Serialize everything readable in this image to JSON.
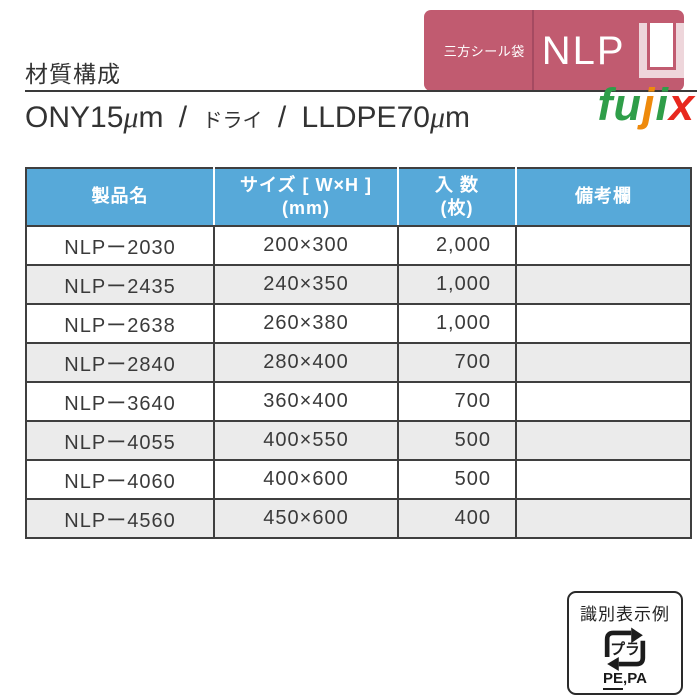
{
  "banner": {
    "category": "三方シール袋",
    "code": "NLP"
  },
  "logo": {
    "green1": "fu",
    "orange": "j",
    "green2": "i",
    "red": "x"
  },
  "heading": {
    "title": "材質構成"
  },
  "material": {
    "ony": "ONY15",
    "ony_unit": "μm",
    "slash1": "/",
    "dry": "ドライ",
    "slash2": "/",
    "lldpe": "LLDPE70",
    "lldpe_unit": "μm"
  },
  "table": {
    "headers": {
      "product": "製品名",
      "size_main": "サイズ [ W×H ]",
      "size_sub": "(mm)",
      "qty_main": "入 数",
      "qty_sub": "(枚)",
      "remarks": "備考欄"
    },
    "rows": [
      {
        "product": "NLPー2030",
        "size": "200×300",
        "qty": "2,000",
        "remarks": ""
      },
      {
        "product": "NLPー2435",
        "size": "240×350",
        "qty": "1,000",
        "remarks": ""
      },
      {
        "product": "NLPー2638",
        "size": "260×380",
        "qty": "1,000",
        "remarks": ""
      },
      {
        "product": "NLPー2840",
        "size": "280×400",
        "qty": "700",
        "remarks": ""
      },
      {
        "product": "NLPー3640",
        "size": "360×400",
        "qty": "700",
        "remarks": ""
      },
      {
        "product": "NLPー4055",
        "size": "400×550",
        "qty": "500",
        "remarks": ""
      },
      {
        "product": "NLPー4060",
        "size": "400×600",
        "qty": "500",
        "remarks": ""
      },
      {
        "product": "NLPー4560",
        "size": "450×600",
        "qty": "400",
        "remarks": ""
      }
    ]
  },
  "id_mark": {
    "title": "識別表示例",
    "icon_text": "プラ",
    "material_main": "PE",
    "material_rest": ",PA"
  },
  "colors": {
    "banner_bg": "#c15b70",
    "banner_divider": "#a54a61",
    "bag_frame": "#eed6db",
    "header_bg": "#57a9d9",
    "row_alt": "#ebebeb",
    "border": "#3f3f3f",
    "text": "#333333",
    "logo_green": "#2f9e49",
    "logo_orange": "#ee8a0c",
    "logo_red": "#e8281e"
  }
}
